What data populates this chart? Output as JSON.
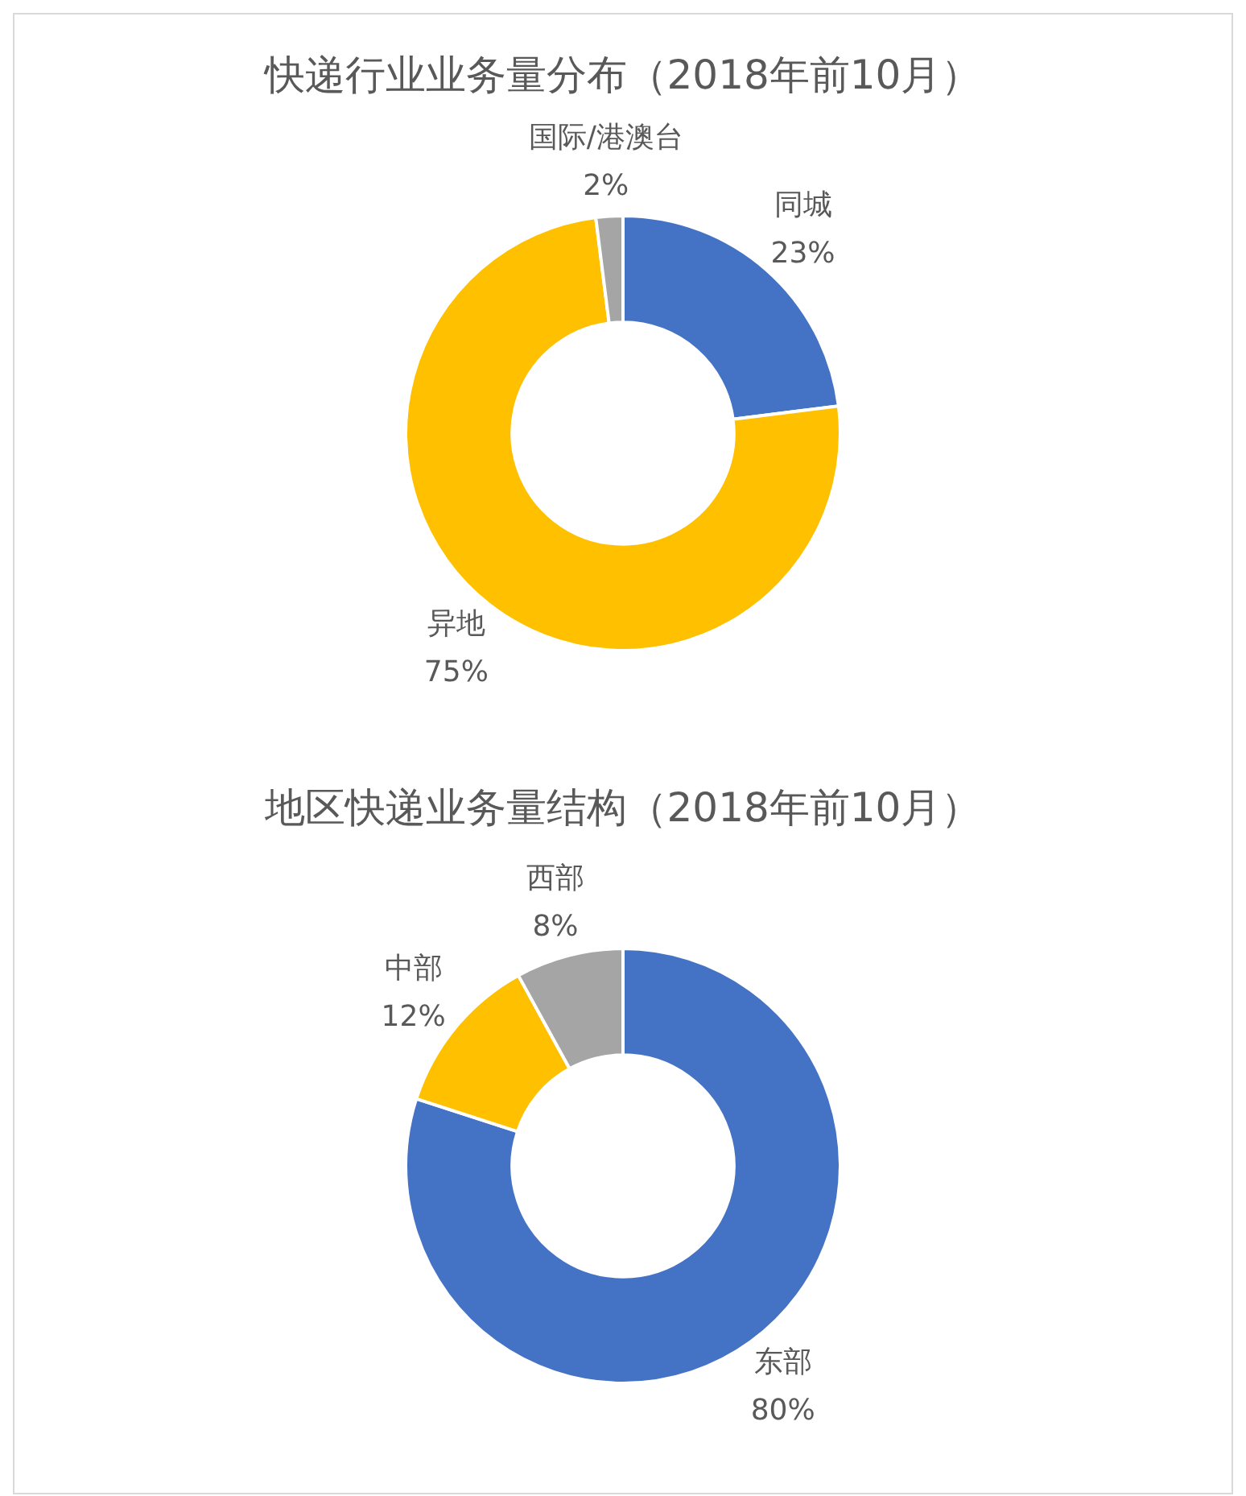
{
  "chart_data": [
    {
      "type": "donut",
      "title": "快递行业业务量分布（2018年前10月）",
      "categories": [
        "同城",
        "异地",
        "国际/港澳台"
      ],
      "values": [
        23,
        75,
        2
      ],
      "value_labels": [
        "23%",
        "75%",
        "2%"
      ],
      "colors": [
        "#4472c4",
        "#ffc000",
        "#a5a5a5"
      ],
      "legend": false
    },
    {
      "type": "donut",
      "title": "地区快递业务量结构（2018年前10月）",
      "categories": [
        "东部",
        "中部",
        "西部"
      ],
      "values": [
        80,
        12,
        8
      ],
      "value_labels": [
        "80%",
        "12%",
        "8%"
      ],
      "colors": [
        "#4472c4",
        "#ffc000",
        "#a5a5a5"
      ],
      "legend": false
    }
  ]
}
